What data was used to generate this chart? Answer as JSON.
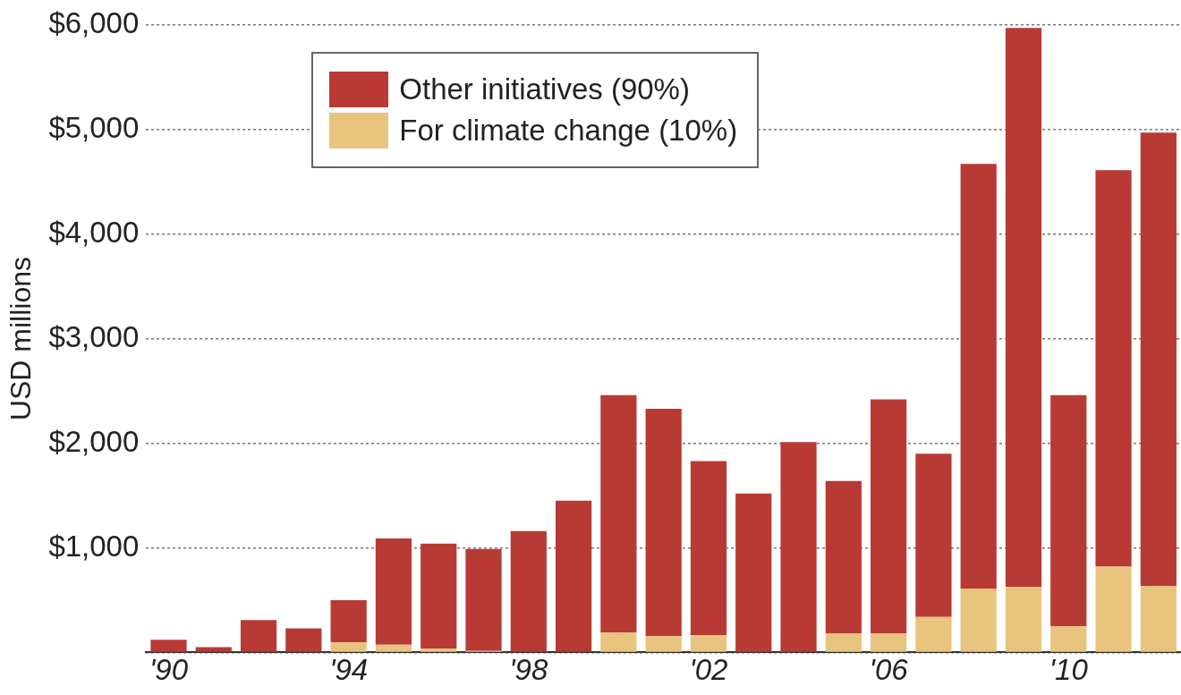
{
  "chart_data": {
    "type": "bar",
    "ylabel": "USD millions",
    "stacked": true,
    "grid": "y",
    "legend": "top left",
    "categories": [
      "'90",
      null,
      null,
      null,
      "'94",
      null,
      null,
      null,
      "'98",
      null,
      null,
      null,
      "'02",
      null,
      null,
      null,
      "'06",
      null,
      null,
      null,
      "'10",
      null,
      null
    ],
    "series": [
      {
        "name": "For climate change (10%)",
        "color": "#e8c47e",
        "values": [
          0,
          0,
          0,
          0,
          95,
          75,
          35,
          15,
          0,
          0,
          190,
          155,
          165,
          0,
          0,
          180,
          180,
          340,
          610,
          625,
          250,
          820,
          635
        ]
      },
      {
        "name": "Other initiatives (90%)",
        "color": "#b83a35",
        "values": [
          120,
          50,
          310,
          230,
          405,
          1015,
          1005,
          975,
          1160,
          1450,
          2270,
          2175,
          1665,
          1520,
          2010,
          1460,
          2240,
          1560,
          4060,
          5345,
          2210,
          3790,
          4335
        ]
      }
    ],
    "ylim": [
      0,
      6000
    ],
    "yticks": [
      {
        "value": 0,
        "label": null
      },
      {
        "value": 1000,
        "label": "$1,000"
      },
      {
        "value": 2000,
        "label": "$2,000"
      },
      {
        "value": 3000,
        "label": "$3,000"
      },
      {
        "value": 4000,
        "label": "$4,000"
      },
      {
        "value": 5000,
        "label": "$5,000"
      },
      {
        "value": 6000,
        "label": "$6,000"
      }
    ]
  }
}
